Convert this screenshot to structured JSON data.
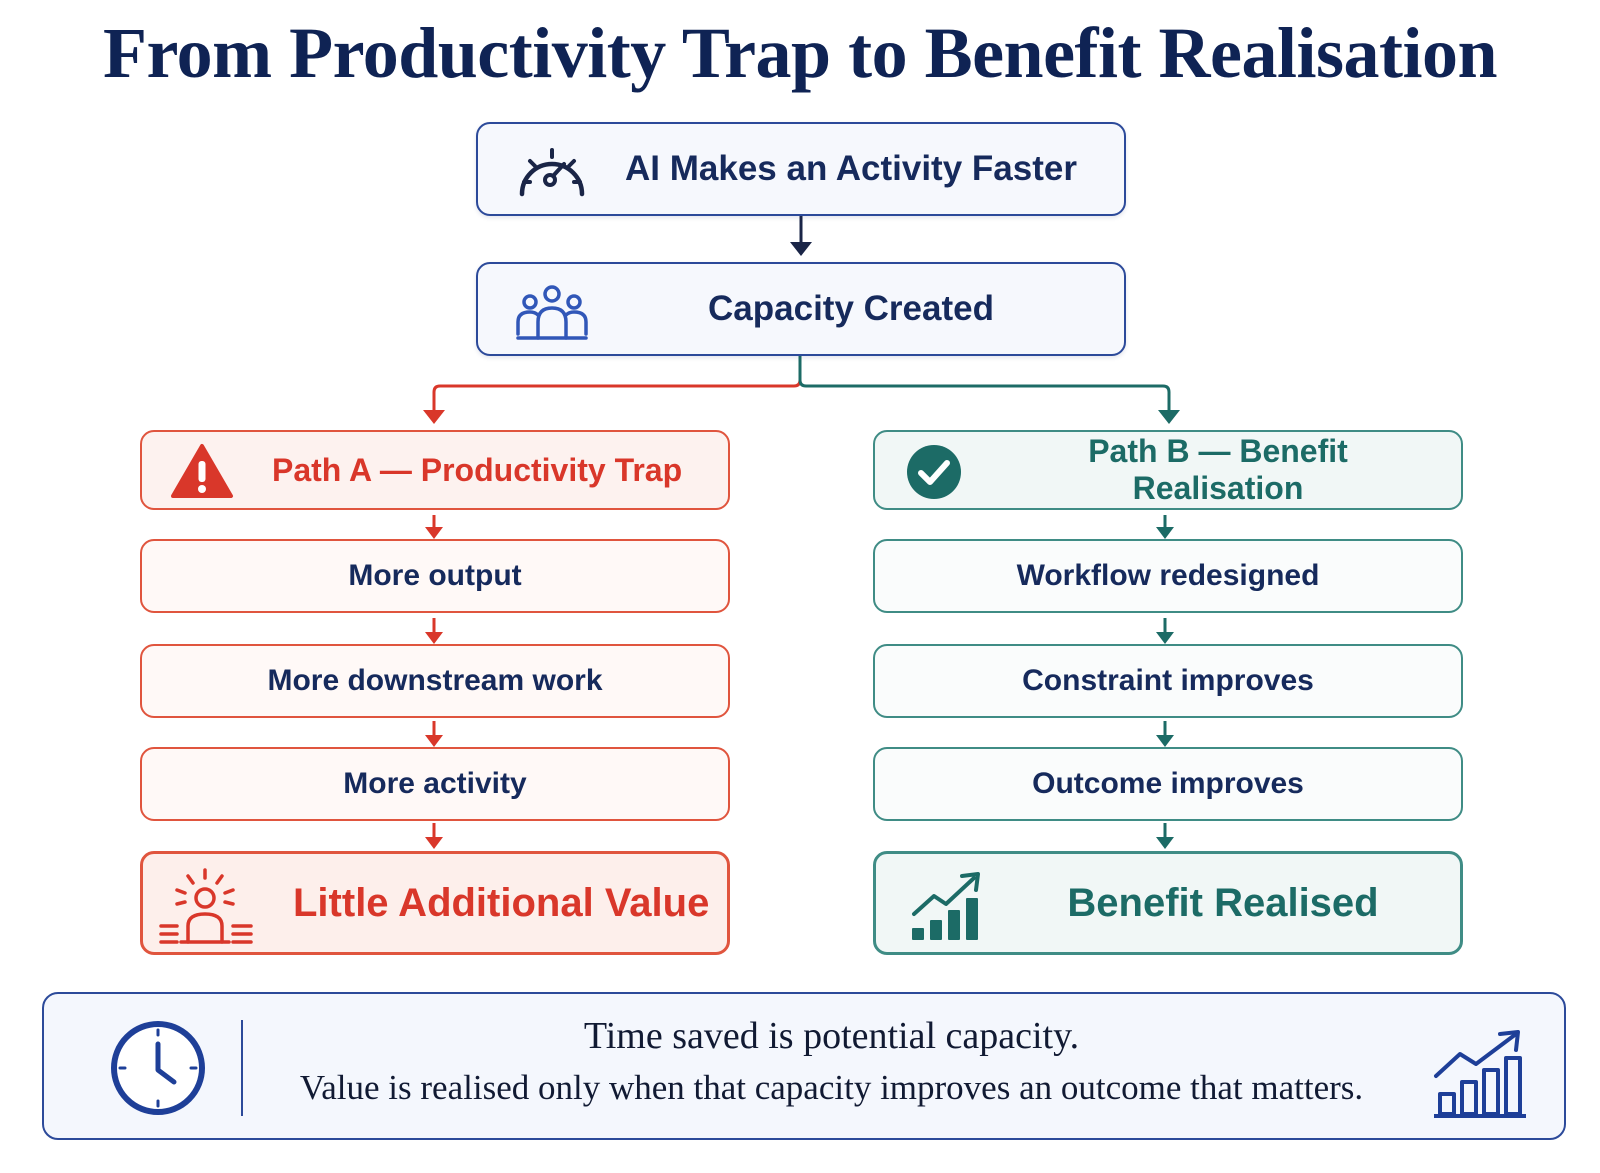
{
  "title": "From Productivity Trap to Benefit Realisation",
  "top": {
    "step1": {
      "label": "AI Makes an Activity Faster",
      "icon": "speedometer-icon"
    },
    "step2": {
      "label": "Capacity Created",
      "icon": "people-group-icon"
    }
  },
  "path_a": {
    "title": "Path A — Productivity Trap",
    "icon": "warning-icon",
    "steps": [
      "More output",
      "More downstream work",
      "More activity"
    ],
    "result": "Little Additional Value",
    "result_icon": "overloaded-person-icon",
    "color": "#d9372a"
  },
  "path_b": {
    "title": "Path B — Benefit Realisation",
    "icon": "check-circle-icon",
    "steps": [
      "Workflow redesigned",
      "Constraint improves",
      "Outcome improves"
    ],
    "result": "Benefit Realised",
    "result_icon": "growth-chart-icon",
    "color": "#1c6b66"
  },
  "footer": {
    "line1": "Time saved is potential capacity.",
    "line2": "Value is realised only when that capacity improves an outcome that matters.",
    "left_icon": "clock-icon",
    "right_icon": "bar-chart-arrow-icon"
  },
  "colors": {
    "navy": "#0f2354",
    "red": "#d9372a",
    "teal": "#1c6b66",
    "border_blue": "#2c4a9a"
  }
}
